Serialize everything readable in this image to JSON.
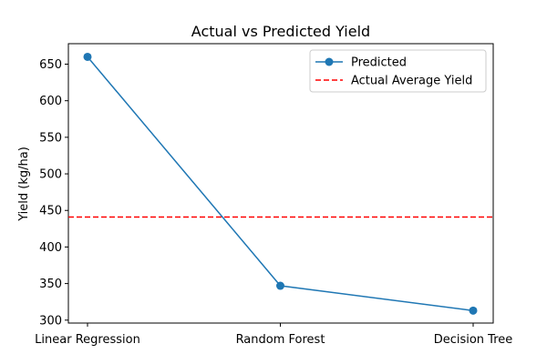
{
  "chart_data": {
    "type": "line",
    "title": "Actual vs Predicted Yield",
    "xlabel": "",
    "ylabel": "Yield (kg/ha)",
    "categories": [
      "Linear Regression",
      "Random Forest",
      "Decision Tree"
    ],
    "series": [
      {
        "name": "Predicted",
        "values": [
          660,
          347,
          313
        ],
        "color": "#1f77b4",
        "marker": "circle"
      }
    ],
    "reference_lines": [
      {
        "name": "Actual Average Yield",
        "y": 441,
        "color": "#ff0000",
        "style": "dashed"
      }
    ],
    "ylim": [
      296,
      678
    ],
    "yticks": [
      300,
      350,
      400,
      450,
      500,
      550,
      600,
      650
    ],
    "grid": false,
    "legend_position": "upper right"
  }
}
